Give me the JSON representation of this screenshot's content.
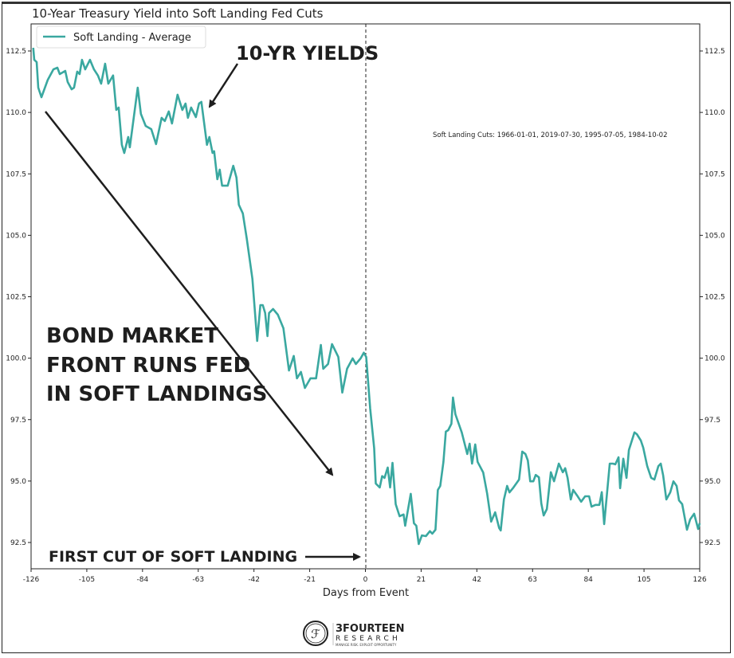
{
  "chart_data": {
    "type": "line",
    "title": "10-Year Treasury Yield into Soft Landing Fed Cuts",
    "xlabel": "Days from Event",
    "ylabel": "",
    "xlim": [
      -126,
      126
    ],
    "ylim": [
      91.5,
      113.2
    ],
    "xticks": [
      -126,
      -105,
      -84,
      -63,
      -42,
      -21,
      0,
      21,
      42,
      63,
      84,
      105,
      126
    ],
    "yticks": [
      "92.5",
      "95.0",
      "97.5",
      "100.0",
      "102.5",
      "105.0",
      "107.5",
      "110.0",
      "112.5"
    ],
    "grid": false,
    "legend_position": "top-left",
    "event_line_x": 0,
    "series": [
      {
        "name": "Soft Landing - Average",
        "color": "#3aa8a0",
        "points": [
          [
            -125.2,
            112.63
          ],
          [
            -124.8,
            112.14
          ],
          [
            -123.9,
            112.05
          ],
          [
            -123.3,
            111.01
          ],
          [
            -122.1,
            110.62
          ],
          [
            -119.7,
            111.33
          ],
          [
            -117.6,
            111.75
          ],
          [
            -116.1,
            111.82
          ],
          [
            -115.2,
            111.56
          ],
          [
            -113.1,
            111.69
          ],
          [
            -112.2,
            111.24
          ],
          [
            -110.7,
            110.94
          ],
          [
            -109.8,
            111.01
          ],
          [
            -108.6,
            111.66
          ],
          [
            -107.7,
            111.56
          ],
          [
            -106.8,
            112.14
          ],
          [
            -105.6,
            111.75
          ],
          [
            -103.8,
            112.14
          ],
          [
            -102.3,
            111.75
          ],
          [
            -100.8,
            111.5
          ],
          [
            -99.6,
            111.17
          ],
          [
            -98.1,
            111.98
          ],
          [
            -96.9,
            111.17
          ],
          [
            -95.1,
            111.5
          ],
          [
            -93.9,
            110.1
          ],
          [
            -93.0,
            110.2
          ],
          [
            -91.8,
            108.68
          ],
          [
            -90.9,
            108.35
          ],
          [
            -89.4,
            109.0
          ],
          [
            -88.8,
            108.58
          ],
          [
            -85.8,
            111.01
          ],
          [
            -84.6,
            109.94
          ],
          [
            -82.8,
            109.45
          ],
          [
            -80.7,
            109.32
          ],
          [
            -78.9,
            108.71
          ],
          [
            -76.8,
            109.78
          ],
          [
            -75.6,
            109.65
          ],
          [
            -74.1,
            110.04
          ],
          [
            -72.9,
            109.55
          ],
          [
            -70.8,
            110.72
          ],
          [
            -69.0,
            110.1
          ],
          [
            -67.8,
            110.36
          ],
          [
            -66.9,
            109.78
          ],
          [
            -65.7,
            110.2
          ],
          [
            -63.9,
            109.81
          ],
          [
            -62.7,
            110.36
          ],
          [
            -61.8,
            110.43
          ],
          [
            -59.7,
            108.68
          ],
          [
            -58.8,
            109.0
          ],
          [
            -57.6,
            108.35
          ],
          [
            -57.0,
            108.42
          ],
          [
            -55.8,
            107.28
          ],
          [
            -54.9,
            107.67
          ],
          [
            -54.0,
            107.02
          ],
          [
            -51.9,
            107.02
          ],
          [
            -49.8,
            107.83
          ],
          [
            -48.6,
            107.35
          ],
          [
            -47.7,
            106.24
          ],
          [
            -46.2,
            105.89
          ],
          [
            -44.7,
            104.85
          ],
          [
            -42.6,
            103.23
          ],
          [
            -40.8,
            100.7
          ],
          [
            -39.6,
            102.16
          ],
          [
            -38.7,
            102.16
          ],
          [
            -37.8,
            101.84
          ],
          [
            -36.9,
            100.9
          ],
          [
            -36.3,
            101.84
          ],
          [
            -34.8,
            102.0
          ],
          [
            -33.0,
            101.77
          ],
          [
            -30.9,
            101.22
          ],
          [
            -28.8,
            99.5
          ],
          [
            -27.0,
            100.09
          ],
          [
            -25.8,
            99.18
          ],
          [
            -24.3,
            99.44
          ],
          [
            -22.8,
            98.79
          ],
          [
            -20.7,
            99.18
          ],
          [
            -18.6,
            99.18
          ],
          [
            -16.8,
            100.54
          ],
          [
            -15.9,
            99.57
          ],
          [
            -14.1,
            99.76
          ],
          [
            -12.6,
            100.57
          ],
          [
            -10.2,
            100.05
          ],
          [
            -8.7,
            98.6
          ],
          [
            -6.9,
            99.57
          ],
          [
            -4.8,
            99.99
          ],
          [
            -3.6,
            99.76
          ],
          [
            -1.8,
            99.99
          ],
          [
            -0.6,
            100.22
          ],
          [
            0.3,
            100.05
          ],
          [
            1.8,
            97.95
          ],
          [
            3.3,
            96.33
          ],
          [
            3.9,
            94.9
          ],
          [
            5.4,
            94.74
          ],
          [
            6.3,
            95.2
          ],
          [
            7.2,
            95.13
          ],
          [
            8.4,
            95.55
          ],
          [
            9.3,
            94.74
          ],
          [
            10.2,
            95.74
          ],
          [
            11.4,
            94.06
          ],
          [
            12.9,
            93.57
          ],
          [
            14.4,
            93.64
          ],
          [
            15.0,
            93.18
          ],
          [
            17.1,
            94.48
          ],
          [
            18.3,
            93.28
          ],
          [
            19.2,
            93.18
          ],
          [
            20.1,
            92.44
          ],
          [
            21.3,
            92.79
          ],
          [
            22.8,
            92.76
          ],
          [
            24.3,
            92.96
          ],
          [
            25.2,
            92.86
          ],
          [
            26.4,
            93.02
          ],
          [
            27.3,
            94.64
          ],
          [
            28.2,
            94.8
          ],
          [
            29.4,
            95.78
          ],
          [
            30.3,
            97.01
          ],
          [
            31.2,
            97.07
          ],
          [
            32.4,
            97.33
          ],
          [
            33.0,
            98.4
          ],
          [
            33.9,
            97.72
          ],
          [
            36.3,
            96.98
          ],
          [
            38.4,
            96.1
          ],
          [
            39.3,
            96.52
          ],
          [
            40.2,
            95.71
          ],
          [
            41.4,
            96.49
          ],
          [
            42.3,
            95.78
          ],
          [
            44.4,
            95.35
          ],
          [
            45.9,
            94.48
          ],
          [
            47.4,
            93.35
          ],
          [
            48.9,
            93.73
          ],
          [
            50.4,
            93.09
          ],
          [
            51.0,
            92.99
          ],
          [
            52.2,
            94.25
          ],
          [
            53.4,
            94.8
          ],
          [
            54.3,
            94.54
          ],
          [
            55.8,
            94.74
          ],
          [
            57.9,
            95.06
          ],
          [
            59.1,
            96.2
          ],
          [
            60.3,
            96.1
          ],
          [
            61.2,
            95.84
          ],
          [
            62.1,
            94.99
          ],
          [
            63.3,
            94.99
          ],
          [
            64.2,
            95.25
          ],
          [
            65.4,
            95.15
          ],
          [
            66.3,
            94.09
          ],
          [
            67.2,
            93.6
          ],
          [
            68.4,
            93.86
          ],
          [
            69.9,
            95.36
          ],
          [
            71.1,
            94.99
          ],
          [
            72.9,
            95.71
          ],
          [
            74.4,
            95.36
          ],
          [
            75.3,
            95.52
          ],
          [
            76.2,
            95.13
          ],
          [
            77.4,
            94.25
          ],
          [
            78.3,
            94.64
          ],
          [
            79.8,
            94.41
          ],
          [
            81.3,
            94.16
          ],
          [
            82.8,
            94.38
          ],
          [
            84.3,
            94.38
          ],
          [
            85.2,
            93.96
          ],
          [
            86.7,
            94.03
          ],
          [
            88.2,
            94.03
          ],
          [
            89.1,
            94.55
          ],
          [
            90.0,
            93.25
          ],
          [
            92.1,
            95.71
          ],
          [
            93.3,
            95.71
          ],
          [
            94.2,
            95.68
          ],
          [
            95.4,
            95.97
          ],
          [
            96.0,
            94.71
          ],
          [
            97.2,
            95.91
          ],
          [
            98.4,
            95.13
          ],
          [
            99.3,
            96.26
          ],
          [
            101.4,
            96.98
          ],
          [
            102.3,
            96.91
          ],
          [
            103.8,
            96.65
          ],
          [
            104.7,
            96.36
          ],
          [
            106.2,
            95.61
          ],
          [
            107.7,
            95.13
          ],
          [
            108.9,
            95.06
          ],
          [
            110.4,
            95.61
          ],
          [
            111.3,
            95.71
          ],
          [
            112.2,
            95.23
          ],
          [
            113.4,
            94.25
          ],
          [
            114.9,
            94.54
          ],
          [
            116.1,
            94.99
          ],
          [
            117.3,
            94.8
          ],
          [
            118.2,
            94.21
          ],
          [
            119.4,
            94.06
          ],
          [
            121.2,
            93.02
          ],
          [
            122.4,
            93.44
          ],
          [
            123.9,
            93.67
          ],
          [
            125.4,
            93.05
          ],
          [
            126.0,
            93.28
          ]
        ]
      }
    ],
    "annotations": {
      "yields_label": "10-YR YIELDS",
      "bond_market_lines": [
        "BOND MARKET",
        "FRONT RUNS FED",
        "IN SOFT LANDINGS"
      ],
      "first_cut_label": "FIRST CUT OF SOFT LANDING",
      "cuts_note": "Soft Landing Cuts: 1966-01-01, 2019-07-30, 1995-07-05, 1984-10-02"
    }
  },
  "logo": {
    "name": "3FOURTEEN",
    "sub": "RESEARCH",
    "tagline": "MANAGE RISK. EXPLOIT OPPORTUNITY"
  }
}
